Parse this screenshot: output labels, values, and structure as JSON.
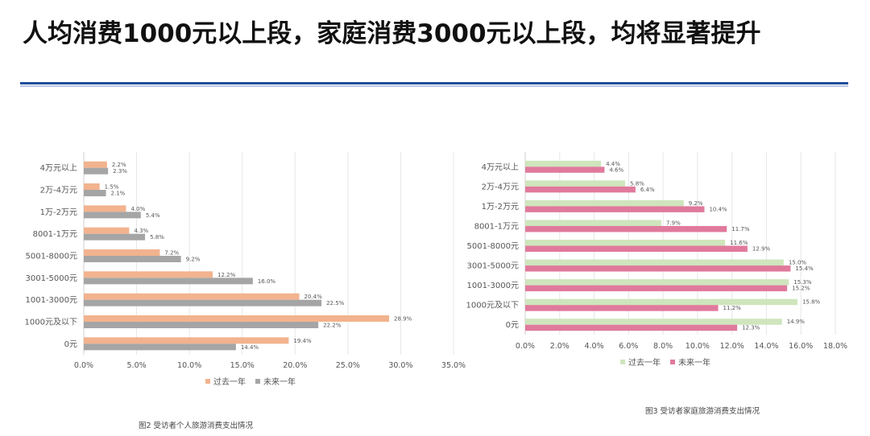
{
  "page": {
    "title": "人均消费1000元以上段，家庭消费3000元以上段，均将显著提升"
  },
  "chart_data": [
    {
      "type": "bar",
      "orientation": "horizontal",
      "caption": "图2 受访者个人旅游消费支出情况",
      "categories": [
        "0元",
        "1000元及以下",
        "1001-3000元",
        "3001-5000元",
        "5001-8000元",
        "8001-1万元",
        "1万-2万元",
        "2万-4万元",
        "4万元以上"
      ],
      "series": [
        {
          "name": "过去一年",
          "values": [
            19.4,
            28.9,
            20.4,
            12.2,
            7.2,
            4.3,
            4.0,
            1.5,
            2.2
          ],
          "labels": [
            "19.4%",
            "28.9%",
            "20.4%",
            "12.2%",
            "7.2%",
            "4.3%",
            "4.0%",
            "1.5%",
            "2.2%"
          ],
          "color": "#f2b38e"
        },
        {
          "name": "未来一年",
          "values": [
            14.4,
            22.2,
            22.5,
            16.0,
            9.2,
            5.8,
            5.4,
            2.1,
            2.3
          ],
          "labels": [
            "14.4%",
            "22.2%",
            "22.5%",
            "16.0%",
            "9.2%",
            "5.8%",
            "5.4%",
            "2.1%",
            "2.3%"
          ],
          "color": "#a5a5a5"
        }
      ],
      "xlim": [
        0,
        35
      ],
      "xticks": [
        "0.0%",
        "5.0%",
        "10.0%",
        "15.0%",
        "20.0%",
        "25.0%",
        "30.0%",
        "35.0%"
      ],
      "grid": true,
      "legend_position": "bottom"
    },
    {
      "type": "bar",
      "orientation": "horizontal",
      "caption": "图3 受访者家庭旅游消费支出情况",
      "categories": [
        "0元",
        "1000元及以下",
        "1001-3000元",
        "3001-5000元",
        "5001-8000元",
        "8001-1万元",
        "1万-2万元",
        "2万-4万元",
        "4万元以上"
      ],
      "series": [
        {
          "name": "过去一年",
          "values": [
            14.9,
            15.8,
            15.3,
            15.0,
            11.6,
            7.9,
            9.2,
            5.8,
            4.4
          ],
          "labels": [
            "14.9%",
            "15.8%",
            "15.3%",
            "15.0%",
            "11.6%",
            "7.9%",
            "9.2%",
            "5.8%",
            "4.4%"
          ],
          "color": "#cfe5bd"
        },
        {
          "name": "未来一年",
          "values": [
            12.3,
            11.2,
            15.2,
            15.4,
            12.9,
            11.7,
            10.4,
            6.4,
            4.6
          ],
          "labels": [
            "12.3%",
            "11.2%",
            "15.2%",
            "15.4%",
            "12.9%",
            "11.7%",
            "10.4%",
            "6.4%",
            "4.6%"
          ],
          "color": "#e07a9c"
        }
      ],
      "xlim": [
        0,
        18
      ],
      "xticks": [
        "0.0%",
        "2.0%",
        "4.0%",
        "6.0%",
        "8.0%",
        "10.0%",
        "12.0%",
        "14.0%",
        "16.0%",
        "18.0%"
      ],
      "grid": true,
      "legend_position": "bottom"
    }
  ]
}
